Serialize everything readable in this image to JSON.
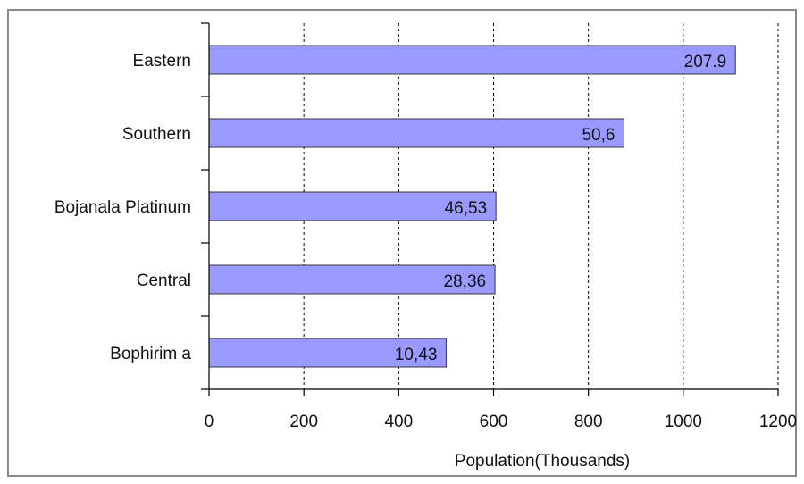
{
  "chart_data": {
    "type": "bar",
    "orientation": "horizontal",
    "categories": [
      "Eastern",
      "Southern",
      "Bojanala Platinum",
      "Central",
      "Bophirim a"
    ],
    "series": [
      {
        "values": [
          1110,
          875,
          605,
          603,
          500
        ],
        "data_labels": [
          "207.9",
          "50,6",
          "46,53",
          "28,36",
          "10,43"
        ]
      }
    ],
    "xlabel": "Population(Thousands)",
    "ylabel": "",
    "title": "",
    "xlim": [
      0,
      1200
    ],
    "xticks": [
      "0",
      "200",
      "400",
      "600",
      "800",
      "1000",
      "1200"
    ],
    "grid": "vertical dashed",
    "legend": "none",
    "colors": {
      "bar_fill": "#9999ff",
      "bar_stroke": "#333333",
      "grid": "#000000",
      "axis": "#000000"
    }
  }
}
